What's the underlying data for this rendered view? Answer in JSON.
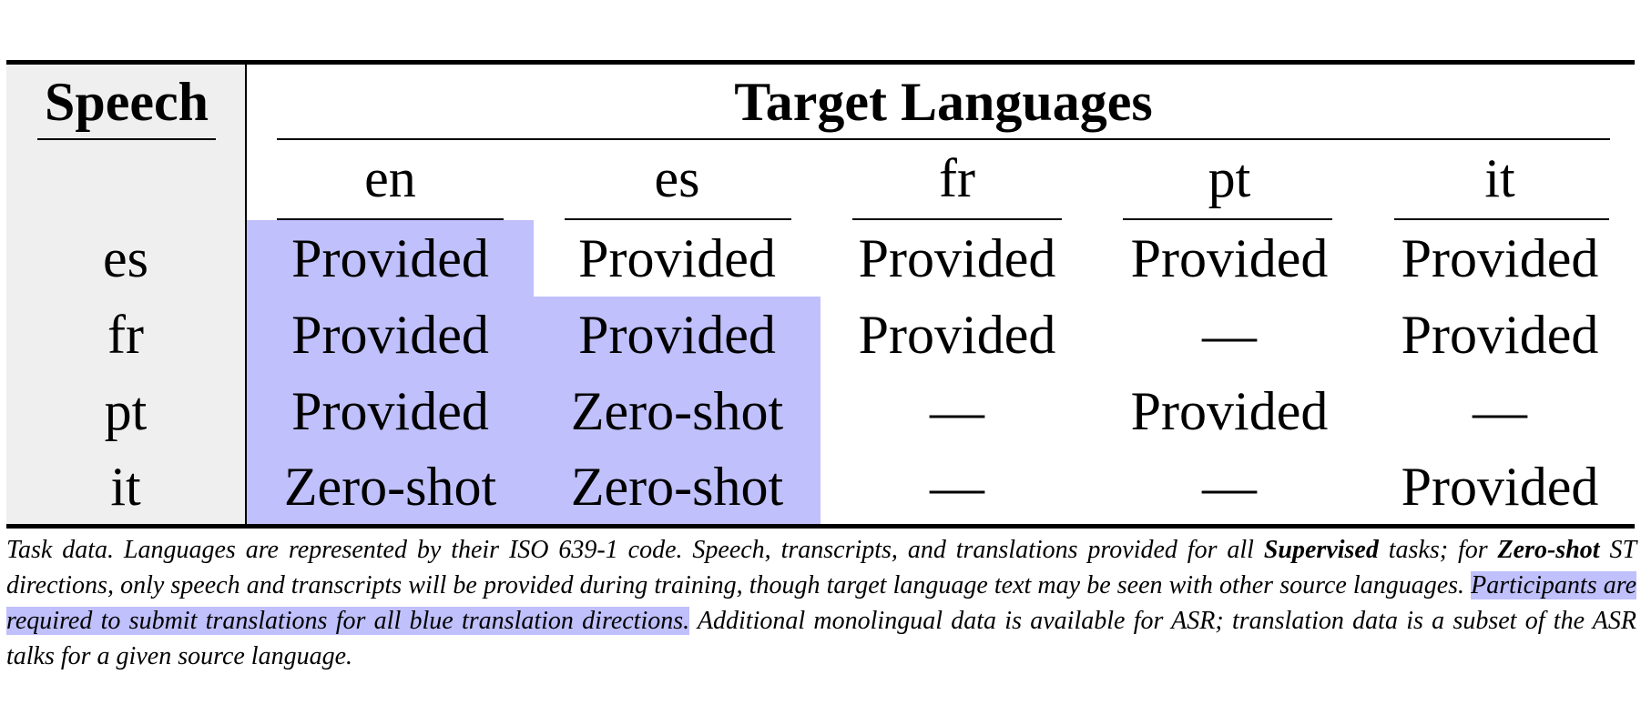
{
  "table": {
    "header": {
      "speech": "Speech",
      "target_languages": "Target Languages",
      "columns": [
        "en",
        "es",
        "fr",
        "pt",
        "it"
      ]
    },
    "rows": [
      {
        "source": "es",
        "cells": [
          "Provided",
          "Provided",
          "Provided",
          "Provided",
          "Provided"
        ]
      },
      {
        "source": "fr",
        "cells": [
          "Provided",
          "Provided",
          "Provided",
          "—",
          "Provided"
        ]
      },
      {
        "source": "pt",
        "cells": [
          "Provided",
          "Zero-shot",
          "—",
          "Provided",
          "—"
        ]
      },
      {
        "source": "it",
        "cells": [
          "Zero-shot",
          "Zero-shot",
          "—",
          "—",
          "Provided"
        ]
      }
    ],
    "highlight_color": "#c0c0fc",
    "speech_column_color": "#efefef"
  },
  "caption": {
    "part1": "Task data. Languages are represented by their ISO 639-1 code. Speech, transcripts, and translations provided for all ",
    "bold1": "Supervised",
    "part2": " tasks; for ",
    "bold2": "Zero-shot",
    "part3": " ST directions, only speech and transcripts will be provided during training, though target language text may be seen with other source languages. ",
    "highlighted": "Participants are required to submit translations for all blue translation directions.",
    "part4": " Additional monolingual data is available for ASR; translation data is a subset of the ASR talks for a given source language."
  }
}
